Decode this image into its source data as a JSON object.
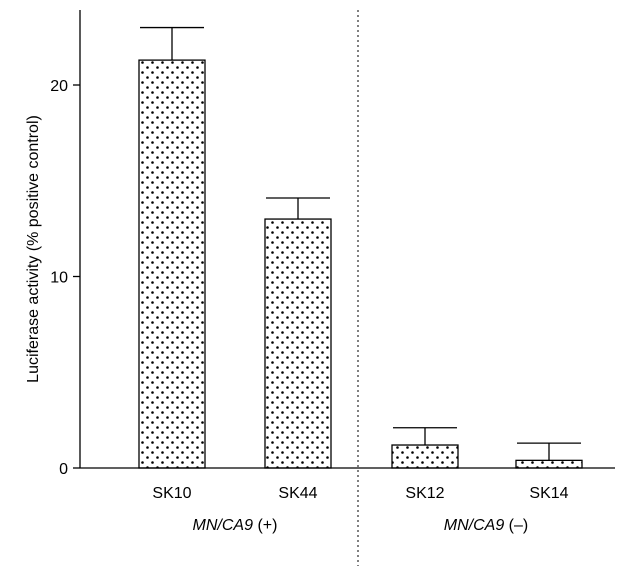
{
  "chart_data": {
    "type": "bar",
    "title": "",
    "xlabel": "",
    "ylabel": "Luciferase activity (% positive control)",
    "ylim": [
      0,
      24
    ],
    "yticks": [
      0,
      10,
      20
    ],
    "grid": false,
    "error_bars": true,
    "bar_pattern": "dots",
    "categories": [
      "SK10",
      "SK44",
      "SK12",
      "SK14"
    ],
    "values": [
      21.3,
      13.0,
      1.2,
      0.4
    ],
    "errors": [
      1.7,
      1.1,
      0.9,
      0.9
    ],
    "groups": [
      {
        "name_italic": "MN/CA9",
        "name_suffix": " (+)",
        "categories": [
          "SK10",
          "SK44"
        ]
      },
      {
        "name_italic": "MN/CA9",
        "name_suffix": " (–)",
        "categories": [
          "SK12",
          "SK14"
        ]
      }
    ],
    "group_divider": "dotted vertical line between SK44 and SK12"
  }
}
